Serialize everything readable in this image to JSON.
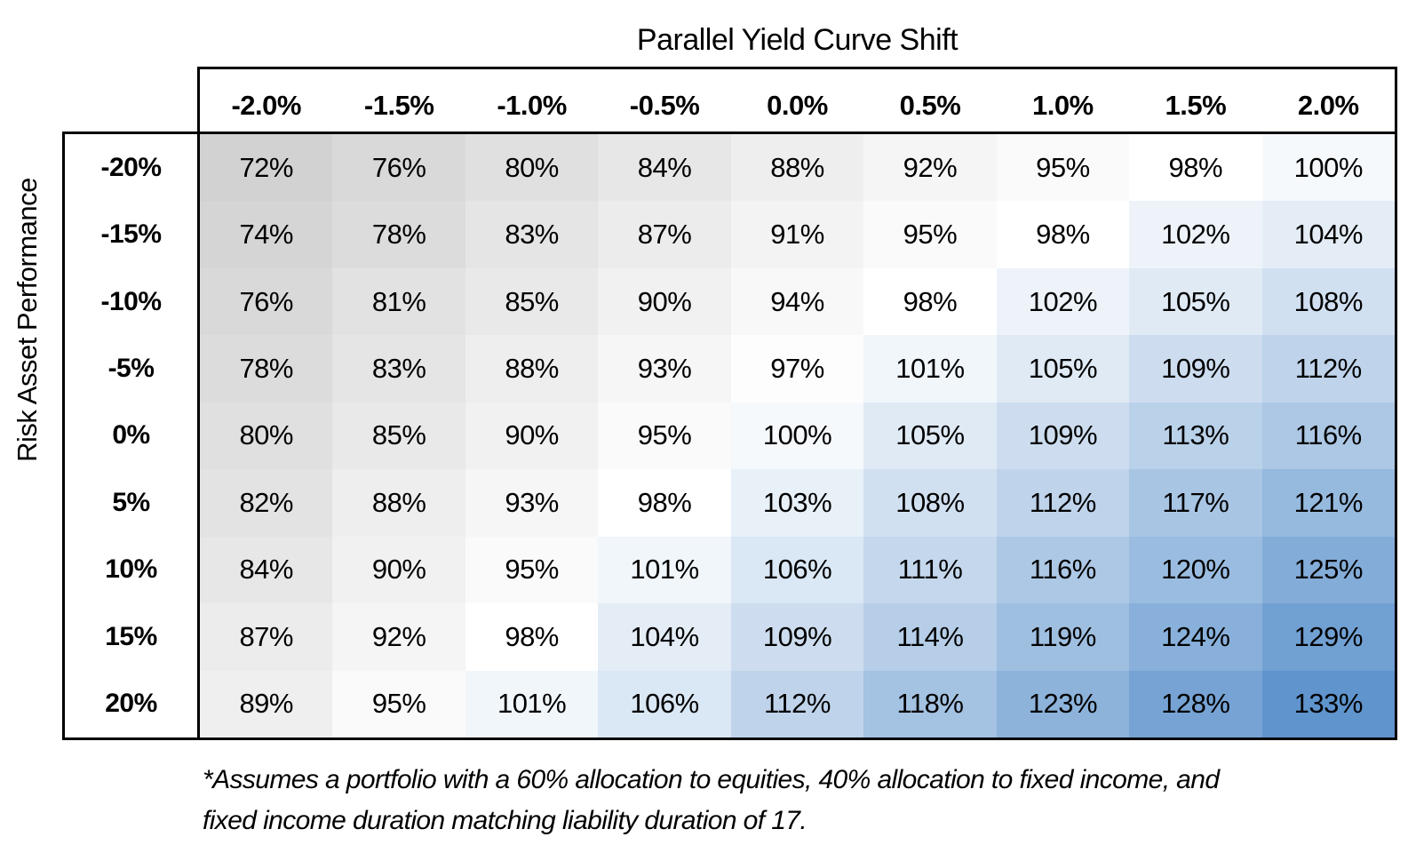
{
  "title": "Parallel Yield Curve Shift",
  "y_axis_label": "Risk Asset Performance",
  "footnote": {
    "line1": "*Assumes a portfolio with a 60% allocation to equities, 40% allocation to fixed income, and",
    "line2": "fixed income duration matching liability duration of 17."
  },
  "chart_data": {
    "type": "heatmap",
    "title": "Parallel Yield Curve Shift",
    "xlabel": "Parallel Yield Curve Shift",
    "ylabel": "Risk Asset Performance",
    "unit": "%",
    "columns": [
      "-2.0%",
      "-1.5%",
      "-1.0%",
      "-0.5%",
      "0.0%",
      "0.5%",
      "1.0%",
      "1.5%",
      "2.0%"
    ],
    "rows": [
      "-20%",
      "-15%",
      "-10%",
      "-5%",
      "0%",
      "5%",
      "10%",
      "15%",
      "20%"
    ],
    "values": [
      [
        72,
        76,
        80,
        84,
        88,
        92,
        95,
        98,
        100
      ],
      [
        74,
        78,
        83,
        87,
        91,
        95,
        98,
        102,
        104
      ],
      [
        76,
        81,
        85,
        90,
        94,
        98,
        102,
        105,
        108
      ],
      [
        78,
        83,
        88,
        93,
        97,
        101,
        105,
        109,
        112
      ],
      [
        80,
        85,
        90,
        95,
        100,
        105,
        109,
        113,
        116
      ],
      [
        82,
        88,
        93,
        98,
        103,
        108,
        112,
        117,
        121
      ],
      [
        84,
        90,
        95,
        101,
        106,
        111,
        116,
        120,
        125
      ],
      [
        87,
        92,
        98,
        104,
        109,
        114,
        119,
        124,
        129
      ],
      [
        89,
        95,
        101,
        106,
        112,
        118,
        123,
        128,
        133
      ]
    ],
    "color_scale": {
      "min_value": 72,
      "mid_value": 98,
      "max_value": 133,
      "min_color": "#D2D2D2",
      "mid_color": "#FFFFFF",
      "max_color": "#5F94CD"
    },
    "legend_position": "none",
    "grid": false
  }
}
